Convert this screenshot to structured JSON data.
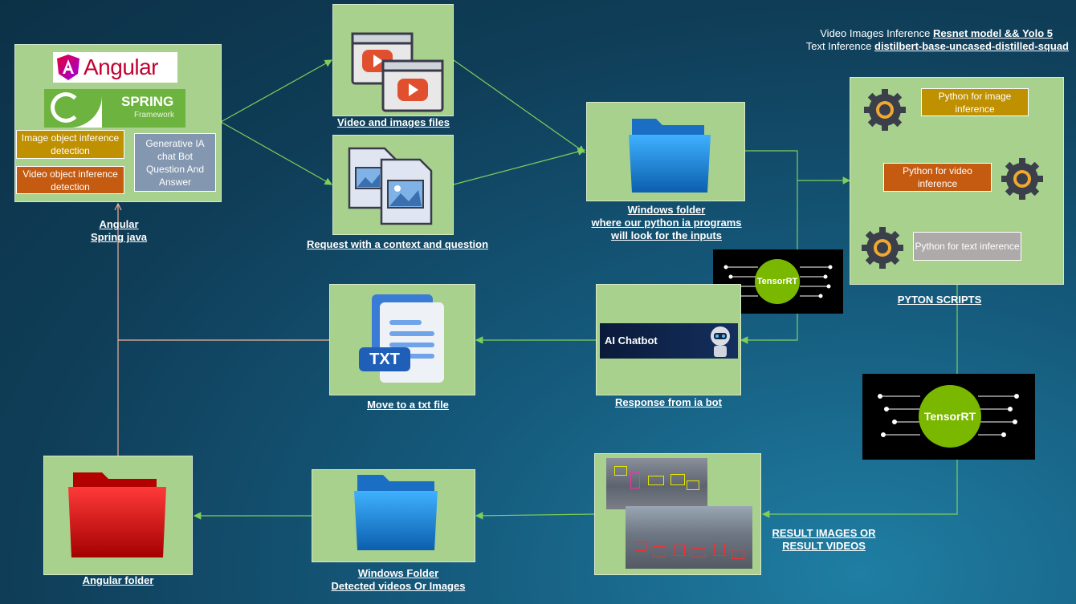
{
  "header": {
    "line1_prefix": "Video Images Inference ",
    "line1_bold": "Resnet model && Yolo 5",
    "line2_prefix": "Text Inference ",
    "line2_bold": "distilbert-base-uncased-distilled-squad"
  },
  "frontend": {
    "angular_logo": "Angular",
    "spring_logo": "SPRING",
    "spring_sub": "Framework",
    "tag_image": "Image object inference detection",
    "tag_video": "Video object inference detection",
    "tag_chat": "Generative IA chat Bot Question And Answer",
    "caption_line1": "Angular",
    "caption_line2": "Spring java"
  },
  "video_files": {
    "caption": "Video and images files"
  },
  "request": {
    "caption": "Request with a context and question"
  },
  "windows_folder": {
    "caption_line1": "Windows folder",
    "caption_line2": "where our python ia programs",
    "caption_line3": "will look for the inputs"
  },
  "python_scripts": {
    "image": "Python for image inference",
    "video": "Python for video inference",
    "text": "Python for text inference",
    "caption": "PYTON SCRIPTS"
  },
  "tensorrt": {
    "label": "TensorRT"
  },
  "chatbot": {
    "banner": "AI Chatbot",
    "caption": "Response from ia bot"
  },
  "txt_file": {
    "icon_label": "TXT",
    "caption": "Move to a txt file"
  },
  "results": {
    "caption_line1": "RESULT IMAGES OR",
    "caption_line2": "RESULT VIDEOS"
  },
  "detected_folder": {
    "caption_line1": "Windows Folder",
    "caption_line2": "Detected videos Or Images"
  },
  "angular_folder": {
    "caption": "Angular folder"
  },
  "colors": {
    "box": "#a9d18e",
    "connector": "#7fcf5a",
    "return_connector": "#f0b39b",
    "tag_gold": "#bf9000",
    "tag_orange": "#c55a11",
    "tag_grey": "#8497b0",
    "tensorrt": "#7ab800"
  }
}
